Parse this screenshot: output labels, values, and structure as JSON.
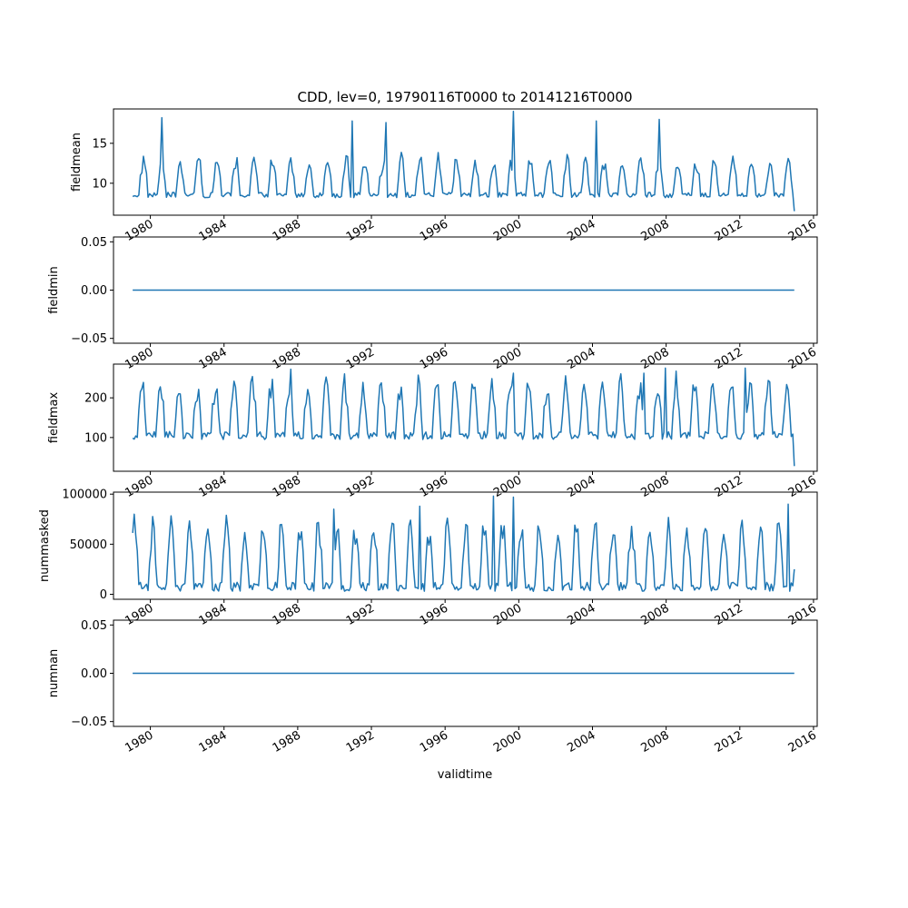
{
  "figure": {
    "title": "CDD, lev=0, 19790116T0000 to 20141216T0000",
    "xlabel": "validtime",
    "line_color": "#1f77b4"
  },
  "chart_data": [
    {
      "type": "line",
      "ylabel": "fieldmean",
      "x_start": "1979-01-16",
      "x_end": "2014-12-16",
      "xlim": [
        1978.0,
        2016.2
      ],
      "xticks": [
        "1980",
        "1984",
        "1988",
        "1992",
        "1996",
        "2000",
        "2004",
        "2008",
        "2012",
        "2016"
      ],
      "ylim": [
        6.0,
        19.3
      ],
      "yticks": [
        10,
        15
      ],
      "ytick_labels": [
        "10",
        "15"
      ],
      "seasonal_model": {
        "base": 8.2,
        "amplitude": 4.4,
        "peak_month": 7,
        "extra_peaks": [
          [
            1980.6,
            18.2
          ],
          [
            1991.0,
            17.8
          ],
          [
            1992.8,
            17.6
          ],
          [
            1999.7,
            19.0
          ],
          [
            2004.2,
            17.8
          ],
          [
            2007.6,
            18.0
          ]
        ],
        "end_value": 6.5
      },
      "series": [
        {
          "name": "",
          "values": []
        }
      ]
    },
    {
      "type": "line",
      "ylabel": "fieldmin",
      "x_start": "1979-01-16",
      "x_end": "2014-12-16",
      "xlim": [
        1978.0,
        2016.2
      ],
      "xticks": [
        "1980",
        "1984",
        "1988",
        "1992",
        "1996",
        "2000",
        "2004",
        "2008",
        "2012",
        "2016"
      ],
      "ylim": [
        -0.055,
        0.055
      ],
      "yticks": [
        -0.05,
        0.0,
        0.05
      ],
      "ytick_labels": [
        "−0.05",
        "0.00",
        "0.05"
      ],
      "constant": 0.0
    },
    {
      "type": "line",
      "ylabel": "fieldmax",
      "x_start": "1979-01-16",
      "x_end": "2014-12-16",
      "xlim": [
        1978.0,
        2016.2
      ],
      "xticks": [
        "1980",
        "1984",
        "1988",
        "1992",
        "1996",
        "2000",
        "2004",
        "2008",
        "2012",
        "2016"
      ],
      "ylim": [
        15,
        285
      ],
      "yticks": [
        100,
        200
      ],
      "ytick_labels": [
        "100",
        "200"
      ],
      "seasonal_model": {
        "base": 95,
        "amplitude": 135,
        "peak_month": 6,
        "extra_peaks": [
          [
            1987.6,
            272
          ],
          [
            2006.8,
            262
          ],
          [
            2008.0,
            275
          ],
          [
            2012.3,
            275
          ],
          [
            1999.7,
            262
          ]
        ],
        "end_value": 28
      },
      "series": [
        {
          "name": "",
          "values": []
        }
      ]
    },
    {
      "type": "line",
      "ylabel": "nummasked",
      "x_start": "1979-01-16",
      "x_end": "2014-12-16",
      "xlim": [
        1978.0,
        2016.2
      ],
      "xticks": [
        "1980",
        "1984",
        "1988",
        "1992",
        "1996",
        "2000",
        "2004",
        "2008",
        "2012",
        "2016"
      ],
      "ylim": [
        -5000,
        102000
      ],
      "yticks": [
        0,
        50000,
        100000
      ],
      "ytick_labels": [
        "0",
        "50000",
        "100000"
      ],
      "seasonal_model": {
        "base": 3000,
        "amplitude": 60000,
        "peak_month": 1,
        "extra_peaks": [
          [
            1998.6,
            98000
          ],
          [
            1999.7,
            97000
          ],
          [
            1990.0,
            85000
          ],
          [
            1994.6,
            88000
          ],
          [
            2014.6,
            90000
          ]
        ],
        "end_value": 25000
      },
      "series": [
        {
          "name": "",
          "values": []
        }
      ]
    },
    {
      "type": "line",
      "ylabel": "numnan",
      "x_start": "1979-01-16",
      "x_end": "2014-12-16",
      "xlim": [
        1978.0,
        2016.2
      ],
      "xticks": [
        "1980",
        "1984",
        "1988",
        "1992",
        "1996",
        "2000",
        "2004",
        "2008",
        "2012",
        "2016"
      ],
      "ylim": [
        -0.055,
        0.055
      ],
      "yticks": [
        -0.05,
        0.0,
        0.05
      ],
      "ytick_labels": [
        "−0.05",
        "0.00",
        "0.05"
      ],
      "constant": 0.0
    }
  ]
}
